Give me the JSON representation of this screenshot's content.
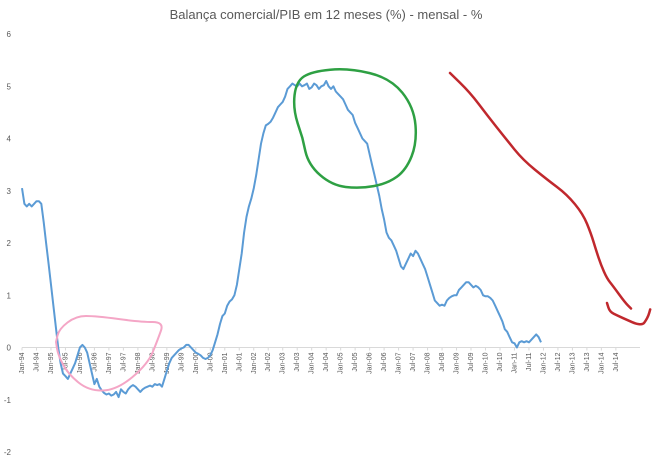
{
  "chart_data": {
    "type": "line",
    "title": "Balança comercial/PIB em 12 meses (%) - mensal - %",
    "xlabel": "",
    "ylabel": "",
    "ylim": [
      -2,
      6
    ],
    "yticks": [
      "-2",
      "-1",
      "0",
      "1",
      "2",
      "3",
      "4",
      "5",
      "6"
    ],
    "grid": false,
    "legend": "none",
    "x_tick_labels": [
      "Jan-94",
      "Jul-94",
      "Jan-95",
      "Jul-95",
      "Jan-96",
      "Jul-96",
      "Jan-97",
      "Jul-97",
      "Jan-98",
      "Jul-98",
      "Jan-99",
      "Jul-99",
      "Jan-00",
      "Jul-00",
      "Jan-01",
      "Jul-01",
      "Jan-02",
      "Jul-02",
      "Jan-03",
      "Jul-03",
      "Jan-04",
      "Jul-04",
      "Jan-05",
      "Jul-05",
      "Jan-06",
      "Jul-06",
      "Jan-07",
      "Jul-07",
      "Jan-08",
      "Jul-08",
      "Jan-09",
      "Jul-09",
      "Jan-10",
      "Jul-10",
      "Jan-11",
      "Jul-11",
      "Jan-12",
      "Jul-12",
      "Jan-13",
      "Jul-13",
      "Jan-14",
      "Jul-14"
    ],
    "series": [
      {
        "color": "#5b9bd5",
        "points": [
          [
            0,
            3.05
          ],
          [
            1,
            2.75
          ],
          [
            2,
            2.7
          ],
          [
            3,
            2.75
          ],
          [
            4,
            2.7
          ],
          [
            5,
            2.75
          ],
          [
            6,
            2.8
          ],
          [
            7,
            2.8
          ],
          [
            8,
            2.75
          ],
          [
            9,
            2.4
          ],
          [
            10,
            2.0
          ],
          [
            11,
            1.6
          ],
          [
            12,
            1.2
          ],
          [
            13,
            0.8
          ],
          [
            14,
            0.4
          ],
          [
            15,
            0.0
          ],
          [
            16,
            -0.3
          ],
          [
            17,
            -0.5
          ],
          [
            18,
            -0.55
          ],
          [
            19,
            -0.6
          ],
          [
            20,
            -0.5
          ],
          [
            21,
            -0.4
          ],
          [
            22,
            -0.3
          ],
          [
            23,
            -0.15
          ],
          [
            24,
            0.0
          ],
          [
            25,
            0.05
          ],
          [
            26,
            0.0
          ],
          [
            27,
            -0.1
          ],
          [
            28,
            -0.3
          ],
          [
            29,
            -0.5
          ],
          [
            30,
            -0.7
          ],
          [
            31,
            -0.6
          ],
          [
            32,
            -0.75
          ],
          [
            33,
            -0.82
          ],
          [
            34,
            -0.87
          ],
          [
            35,
            -0.9
          ],
          [
            36,
            -0.88
          ],
          [
            37,
            -0.92
          ],
          [
            38,
            -0.9
          ],
          [
            39,
            -0.85
          ],
          [
            40,
            -0.95
          ],
          [
            41,
            -0.8
          ],
          [
            42,
            -0.85
          ],
          [
            43,
            -0.88
          ],
          [
            44,
            -0.8
          ],
          [
            45,
            -0.75
          ],
          [
            46,
            -0.72
          ],
          [
            47,
            -0.75
          ],
          [
            48,
            -0.8
          ],
          [
            49,
            -0.85
          ],
          [
            50,
            -0.8
          ],
          [
            51,
            -0.77
          ],
          [
            52,
            -0.75
          ],
          [
            53,
            -0.73
          ],
          [
            54,
            -0.75
          ],
          [
            55,
            -0.7
          ],
          [
            56,
            -0.72
          ],
          [
            57,
            -0.7
          ],
          [
            58,
            -0.75
          ],
          [
            59,
            -0.6
          ],
          [
            60,
            -0.45
          ],
          [
            61,
            -0.3
          ],
          [
            62,
            -0.2
          ],
          [
            63,
            -0.15
          ],
          [
            64,
            -0.1
          ],
          [
            65,
            -0.05
          ],
          [
            66,
            -0.02
          ],
          [
            67,
            0.0
          ],
          [
            68,
            0.05
          ],
          [
            69,
            0.05
          ],
          [
            70,
            0.0
          ],
          [
            71,
            -0.05
          ],
          [
            72,
            -0.1
          ],
          [
            73,
            -0.12
          ],
          [
            74,
            -0.15
          ],
          [
            75,
            -0.2
          ],
          [
            76,
            -0.22
          ],
          [
            77,
            -0.2
          ],
          [
            78,
            -0.15
          ],
          [
            79,
            -0.05
          ],
          [
            80,
            0.1
          ],
          [
            81,
            0.25
          ],
          [
            82,
            0.45
          ],
          [
            83,
            0.6
          ],
          [
            84,
            0.65
          ],
          [
            85,
            0.8
          ],
          [
            86,
            0.88
          ],
          [
            87,
            0.92
          ],
          [
            88,
            1.0
          ],
          [
            89,
            1.2
          ],
          [
            90,
            1.5
          ],
          [
            91,
            1.8
          ],
          [
            92,
            2.2
          ],
          [
            93,
            2.5
          ],
          [
            94,
            2.7
          ],
          [
            95,
            2.85
          ],
          [
            96,
            3.05
          ],
          [
            97,
            3.3
          ],
          [
            98,
            3.6
          ],
          [
            99,
            3.9
          ],
          [
            100,
            4.1
          ],
          [
            101,
            4.25
          ],
          [
            102,
            4.28
          ],
          [
            103,
            4.32
          ],
          [
            104,
            4.4
          ],
          [
            105,
            4.5
          ],
          [
            106,
            4.6
          ],
          [
            107,
            4.65
          ],
          [
            108,
            4.7
          ],
          [
            109,
            4.8
          ],
          [
            110,
            4.95
          ],
          [
            111,
            5.0
          ],
          [
            112,
            5.05
          ],
          [
            113,
            5.02
          ],
          [
            114,
            5.0
          ],
          [
            115,
            5.05
          ],
          [
            116,
            5.0
          ],
          [
            117,
            5.02
          ],
          [
            118,
            5.05
          ],
          [
            119,
            4.95
          ],
          [
            120,
            4.98
          ],
          [
            121,
            5.05
          ],
          [
            122,
            5.02
          ],
          [
            123,
            4.95
          ],
          [
            124,
            5.0
          ],
          [
            125,
            5.02
          ],
          [
            126,
            5.1
          ],
          [
            127,
            5.0
          ],
          [
            128,
            4.95
          ],
          [
            129,
            5.0
          ],
          [
            130,
            4.9
          ],
          [
            131,
            4.85
          ],
          [
            132,
            4.8
          ],
          [
            133,
            4.75
          ],
          [
            134,
            4.65
          ],
          [
            135,
            4.55
          ],
          [
            136,
            4.5
          ],
          [
            137,
            4.45
          ],
          [
            138,
            4.3
          ],
          [
            139,
            4.2
          ],
          [
            140,
            4.1
          ],
          [
            141,
            4.0
          ],
          [
            142,
            3.95
          ],
          [
            143,
            3.9
          ],
          [
            144,
            3.7
          ],
          [
            145,
            3.5
          ],
          [
            146,
            3.3
          ],
          [
            147,
            3.1
          ],
          [
            148,
            2.9
          ],
          [
            149,
            2.65
          ],
          [
            150,
            2.45
          ],
          [
            151,
            2.2
          ],
          [
            152,
            2.1
          ],
          [
            153,
            2.05
          ],
          [
            154,
            1.95
          ],
          [
            155,
            1.85
          ],
          [
            156,
            1.7
          ],
          [
            157,
            1.55
          ],
          [
            158,
            1.5
          ],
          [
            159,
            1.6
          ],
          [
            160,
            1.7
          ],
          [
            161,
            1.8
          ],
          [
            162,
            1.75
          ],
          [
            163,
            1.85
          ],
          [
            164,
            1.8
          ],
          [
            165,
            1.7
          ],
          [
            166,
            1.6
          ],
          [
            167,
            1.5
          ],
          [
            168,
            1.35
          ],
          [
            169,
            1.2
          ],
          [
            170,
            1.05
          ],
          [
            171,
            0.9
          ],
          [
            172,
            0.85
          ],
          [
            173,
            0.8
          ],
          [
            174,
            0.82
          ],
          [
            175,
            0.8
          ],
          [
            176,
            0.9
          ],
          [
            177,
            0.95
          ],
          [
            178,
            0.98
          ],
          [
            179,
            1.0
          ],
          [
            180,
            1.0
          ],
          [
            181,
            1.1
          ],
          [
            182,
            1.15
          ],
          [
            183,
            1.2
          ],
          [
            184,
            1.25
          ],
          [
            185,
            1.25
          ],
          [
            186,
            1.2
          ],
          [
            187,
            1.15
          ],
          [
            188,
            1.18
          ],
          [
            189,
            1.15
          ],
          [
            190,
            1.1
          ],
          [
            191,
            1.0
          ],
          [
            192,
            0.98
          ],
          [
            193,
            0.98
          ],
          [
            194,
            0.95
          ],
          [
            195,
            0.9
          ],
          [
            196,
            0.8
          ],
          [
            197,
            0.7
          ],
          [
            198,
            0.6
          ],
          [
            199,
            0.5
          ],
          [
            200,
            0.35
          ],
          [
            201,
            0.3
          ],
          [
            202,
            0.2
          ],
          [
            203,
            0.1
          ],
          [
            204,
            0.08
          ],
          [
            205,
            0.0
          ],
          [
            206,
            0.1
          ],
          [
            207,
            0.12
          ],
          [
            208,
            0.1
          ],
          [
            209,
            0.12
          ],
          [
            210,
            0.1
          ],
          [
            211,
            0.15
          ],
          [
            212,
            0.2
          ],
          [
            213,
            0.25
          ],
          [
            214,
            0.2
          ],
          [
            215,
            0.1
          ]
        ]
      }
    ],
    "annotations": [
      {
        "color": "#f4a6c6",
        "shape": "freehand-loop",
        "points": [
          [
            0,
            29
          ],
          [
            3,
            16
          ],
          [
            20,
            3
          ],
          [
            40,
            3
          ],
          [
            85,
            9
          ],
          [
            108,
            9
          ],
          [
            102,
            26
          ],
          [
            92,
            51
          ],
          [
            61,
            77
          ],
          [
            33,
            78
          ],
          [
            12,
            61
          ],
          [
            2,
            42
          ],
          [
            0,
            29
          ]
        ]
      },
      {
        "color": "#2ea043",
        "shape": "freehand-loop",
        "points": [
          [
            6,
            41
          ],
          [
            0,
            24
          ],
          [
            2,
            8
          ],
          [
            12,
            2
          ],
          [
            36,
            0
          ],
          [
            63,
            6
          ],
          [
            78,
            23
          ],
          [
            80,
            44
          ],
          [
            73,
            60
          ],
          [
            61,
            68
          ],
          [
            43,
            71
          ],
          [
            25,
            69
          ],
          [
            10,
            57
          ],
          [
            6,
            41
          ]
        ]
      },
      {
        "color": "#c0282d",
        "shape": "freehand-stroke",
        "points": [
          [
            0,
            0
          ],
          [
            20,
            13
          ],
          [
            37,
            28
          ],
          [
            56,
            44
          ],
          [
            73,
            58
          ],
          [
            97,
            71
          ],
          [
            117,
            81
          ],
          [
            133,
            94
          ],
          [
            141,
            107
          ],
          [
            146,
            118
          ],
          [
            151,
            128
          ],
          [
            157,
            137
          ],
          [
            163,
            142
          ],
          [
            175,
            153
          ],
          [
            181,
            157
          ]
        ]
      },
      {
        "color": "#c0282d",
        "shape": "freehand-stroke",
        "points": [
          [
            0,
            0
          ],
          [
            3,
            11
          ],
          [
            12,
            16
          ],
          [
            24,
            22
          ],
          [
            32,
            26
          ],
          [
            40,
            27
          ],
          [
            43,
            22
          ],
          [
            46,
            16
          ],
          [
            48,
            8
          ]
        ]
      }
    ]
  }
}
